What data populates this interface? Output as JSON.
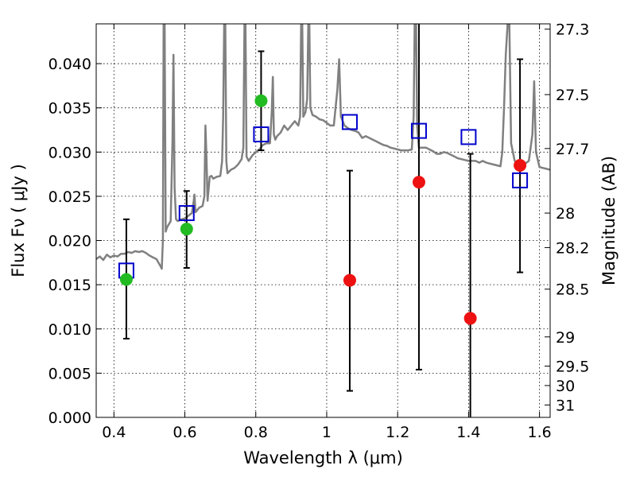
{
  "chart_data": {
    "type": "scatter",
    "title": "",
    "xlabel": "Wavelength  λ (μm)",
    "ylabel_left": "Flux  Fν  ( μJy )",
    "ylabel_right": "Magnitude (AB)",
    "xlim": [
      0.35,
      1.63
    ],
    "ylim": [
      0.0,
      0.0445
    ],
    "grid": true,
    "legend": "none",
    "x_ticks": [
      0.4,
      0.6,
      0.8,
      1.0,
      1.2,
      1.4,
      1.6
    ],
    "x_tick_labels": [
      "0.4",
      "0.6",
      "0.8",
      "1",
      "1.2",
      "1.4",
      "1.6"
    ],
    "y_ticks": [
      0.0,
      0.005,
      0.01,
      0.015,
      0.02,
      0.025,
      0.03,
      0.035,
      0.04
    ],
    "y_tick_labels": [
      "0.000",
      "0.005",
      "0.010",
      "0.015",
      "0.020",
      "0.025",
      "0.030",
      "0.035",
      "0.040"
    ],
    "mag_ticks": [
      {
        "label": "27.3",
        "flux": 0.0439
      },
      {
        "label": "27.5",
        "flux": 0.0365
      },
      {
        "label": "27.7",
        "flux": 0.0304
      },
      {
        "label": "28",
        "flux": 0.0231
      },
      {
        "label": "28.2",
        "flux": 0.0192
      },
      {
        "label": "28.5",
        "flux": 0.0145
      },
      {
        "label": "29",
        "flux": 0.0091
      },
      {
        "label": "29.5",
        "flux": 0.0058
      },
      {
        "label": "30",
        "flux": 0.0036
      },
      {
        "label": "31",
        "flux": 0.0014
      }
    ],
    "colors": {
      "model": "#808080",
      "model_points": "#0000cc",
      "detected": "#22bb22",
      "upper": "#ee1111",
      "errorbar": "#000000"
    },
    "series": [
      {
        "kind": "model_spectrum",
        "points": [
          [
            0.35,
            0.0179
          ],
          [
            0.36,
            0.0182
          ],
          [
            0.37,
            0.0178
          ],
          [
            0.38,
            0.0184
          ],
          [
            0.39,
            0.0181
          ],
          [
            0.4,
            0.0183
          ],
          [
            0.41,
            0.0182
          ],
          [
            0.42,
            0.0185
          ],
          [
            0.43,
            0.0185
          ],
          [
            0.44,
            0.0187
          ],
          [
            0.45,
            0.0186
          ],
          [
            0.46,
            0.0188
          ],
          [
            0.47,
            0.0187
          ],
          [
            0.48,
            0.0188
          ],
          [
            0.49,
            0.0186
          ],
          [
            0.5,
            0.0183
          ],
          [
            0.51,
            0.0181
          ],
          [
            0.52,
            0.0179
          ],
          [
            0.53,
            0.0172
          ],
          [
            0.535,
            0.0168
          ],
          [
            0.538,
            0.02
          ],
          [
            0.54,
            0.0445
          ],
          [
            0.543,
            0.0445
          ],
          [
            0.546,
            0.021
          ],
          [
            0.55,
            0.0215
          ],
          [
            0.56,
            0.0222
          ],
          [
            0.565,
            0.031
          ],
          [
            0.568,
            0.041
          ],
          [
            0.571,
            0.026
          ],
          [
            0.575,
            0.0224
          ],
          [
            0.58,
            0.0222
          ],
          [
            0.59,
            0.0224
          ],
          [
            0.6,
            0.0225
          ],
          [
            0.61,
            0.0228
          ],
          [
            0.62,
            0.0231
          ],
          [
            0.625,
            0.0245
          ],
          [
            0.627,
            0.0252
          ],
          [
            0.63,
            0.0232
          ],
          [
            0.64,
            0.0237
          ],
          [
            0.65,
            0.0239
          ],
          [
            0.655,
            0.025
          ],
          [
            0.658,
            0.033
          ],
          [
            0.661,
            0.0295
          ],
          [
            0.664,
            0.0245
          ],
          [
            0.67,
            0.0272
          ],
          [
            0.675,
            0.0273
          ],
          [
            0.68,
            0.027
          ],
          [
            0.69,
            0.0272
          ],
          [
            0.7,
            0.0273
          ],
          [
            0.705,
            0.029
          ],
          [
            0.708,
            0.034
          ],
          [
            0.711,
            0.0445
          ],
          [
            0.714,
            0.0445
          ],
          [
            0.717,
            0.029
          ],
          [
            0.72,
            0.0276
          ],
          [
            0.73,
            0.028
          ],
          [
            0.74,
            0.0282
          ],
          [
            0.75,
            0.0286
          ],
          [
            0.76,
            0.0292
          ],
          [
            0.765,
            0.0305
          ],
          [
            0.768,
            0.0445
          ],
          [
            0.771,
            0.0445
          ],
          [
            0.774,
            0.0295
          ],
          [
            0.78,
            0.029
          ],
          [
            0.79,
            0.0296
          ],
          [
            0.8,
            0.03
          ],
          [
            0.81,
            0.0303
          ],
          [
            0.82,
            0.0308
          ],
          [
            0.83,
            0.031
          ],
          [
            0.84,
            0.031
          ],
          [
            0.845,
            0.0345
          ],
          [
            0.848,
            0.0385
          ],
          [
            0.851,
            0.032
          ],
          [
            0.855,
            0.0314
          ],
          [
            0.86,
            0.0318
          ],
          [
            0.87,
            0.0322
          ],
          [
            0.88,
            0.033
          ],
          [
            0.89,
            0.0325
          ],
          [
            0.9,
            0.033
          ],
          [
            0.91,
            0.0335
          ],
          [
            0.92,
            0.033
          ],
          [
            0.925,
            0.034
          ],
          [
            0.928,
            0.0445
          ],
          [
            0.931,
            0.0445
          ],
          [
            0.934,
            0.034
          ],
          [
            0.94,
            0.0345
          ],
          [
            0.945,
            0.036
          ],
          [
            0.948,
            0.0445
          ],
          [
            0.951,
            0.0445
          ],
          [
            0.954,
            0.035
          ],
          [
            0.96,
            0.0342
          ],
          [
            0.97,
            0.034
          ],
          [
            0.98,
            0.0337
          ],
          [
            0.99,
            0.0336
          ],
          [
            1.0,
            0.0333
          ],
          [
            1.01,
            0.033
          ],
          [
            1.02,
            0.033
          ],
          [
            1.03,
            0.037
          ],
          [
            1.035,
            0.0405
          ],
          [
            1.04,
            0.034
          ],
          [
            1.05,
            0.033
          ],
          [
            1.06,
            0.0327
          ],
          [
            1.07,
            0.0325
          ],
          [
            1.08,
            0.0324
          ],
          [
            1.09,
            0.0322
          ],
          [
            1.1,
            0.0316
          ],
          [
            1.11,
            0.0318
          ],
          [
            1.12,
            0.0316
          ],
          [
            1.13,
            0.0314
          ],
          [
            1.14,
            0.0312
          ],
          [
            1.15,
            0.031
          ],
          [
            1.16,
            0.0308
          ],
          [
            1.17,
            0.0307
          ],
          [
            1.18,
            0.0305
          ],
          [
            1.19,
            0.0304
          ],
          [
            1.2,
            0.0303
          ],
          [
            1.21,
            0.0302
          ],
          [
            1.22,
            0.0302
          ],
          [
            1.23,
            0.0302
          ],
          [
            1.24,
            0.0303
          ],
          [
            1.245,
            0.034
          ],
          [
            1.248,
            0.0445
          ],
          [
            1.252,
            0.0445
          ],
          [
            1.255,
            0.033
          ],
          [
            1.26,
            0.0305
          ],
          [
            1.27,
            0.0305
          ],
          [
            1.28,
            0.0305
          ],
          [
            1.29,
            0.0303
          ],
          [
            1.3,
            0.0301
          ],
          [
            1.31,
            0.0298
          ],
          [
            1.32,
            0.0298
          ],
          [
            1.33,
            0.03
          ],
          [
            1.34,
            0.0299
          ],
          [
            1.35,
            0.0297
          ],
          [
            1.36,
            0.0295
          ],
          [
            1.37,
            0.0293
          ],
          [
            1.38,
            0.0292
          ],
          [
            1.39,
            0.0291
          ],
          [
            1.4,
            0.029
          ],
          [
            1.41,
            0.029
          ],
          [
            1.42,
            0.029
          ],
          [
            1.43,
            0.0288
          ],
          [
            1.44,
            0.029
          ],
          [
            1.45,
            0.0288
          ],
          [
            1.46,
            0.0287
          ],
          [
            1.47,
            0.0286
          ],
          [
            1.48,
            0.0285
          ],
          [
            1.49,
            0.0284
          ],
          [
            1.495,
            0.03
          ],
          [
            1.5,
            0.035
          ],
          [
            1.505,
            0.041
          ],
          [
            1.51,
            0.0445
          ],
          [
            1.515,
            0.0445
          ],
          [
            1.52,
            0.031
          ],
          [
            1.53,
            0.029
          ],
          [
            1.54,
            0.0287
          ],
          [
            1.55,
            0.0286
          ],
          [
            1.56,
            0.0287
          ],
          [
            1.57,
            0.029
          ],
          [
            1.58,
            0.032
          ],
          [
            1.585,
            0.038
          ],
          [
            1.59,
            0.03
          ],
          [
            1.6,
            0.0283
          ],
          [
            1.61,
            0.0282
          ],
          [
            1.62,
            0.0281
          ],
          [
            1.63,
            0.028
          ]
        ]
      },
      {
        "kind": "model_photometry",
        "x": [
          0.435,
          0.605,
          0.815,
          1.065,
          1.26,
          1.4,
          1.545
        ],
        "y": [
          0.0166,
          0.0231,
          0.032,
          0.0334,
          0.0324,
          0.0317,
          0.0268
        ]
      },
      {
        "kind": "detections",
        "x": [
          0.435,
          0.605,
          0.815
        ],
        "y": [
          0.0156,
          0.0213,
          0.0358
        ],
        "yerr_low": [
          0.0089,
          0.0169,
          0.0302
        ],
        "yerr_high": [
          0.0224,
          0.0256,
          0.0414
        ]
      },
      {
        "kind": "upper_limits",
        "x": [
          1.065,
          1.26,
          1.405,
          1.545
        ],
        "y": [
          0.0155,
          0.0266,
          0.0112,
          0.0285
        ],
        "yerr_low": [
          0.003,
          0.0054,
          0.0,
          0.0164
        ],
        "yerr_high": [
          0.0279,
          0.0445,
          0.0298,
          0.0405
        ]
      }
    ]
  }
}
